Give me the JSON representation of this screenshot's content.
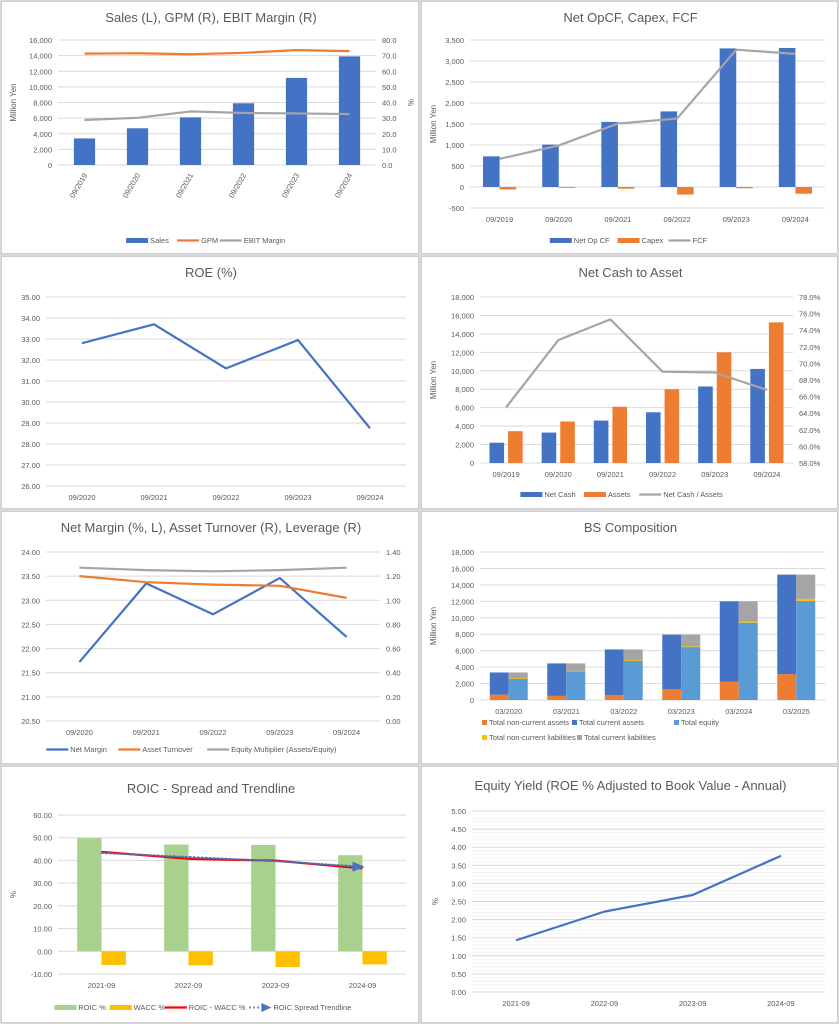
{
  "chart_data": [
    {
      "id": "sales",
      "type": "bar",
      "title": "Sales (L), GPM (R), EBIT Margin (R)",
      "categories": [
        "09/2019",
        "09/2020",
        "09/2021",
        "09/2022",
        "09/2023",
        "09/2024"
      ],
      "ylabel": "Million Yen",
      "y2label": "%",
      "ylim": [
        0,
        16000
      ],
      "yticks": [
        "0",
        "2,000",
        "4,000",
        "6,000",
        "8,000",
        "10,000",
        "12,000",
        "14,000",
        "16,000"
      ],
      "y2lim": [
        0,
        80
      ],
      "y2ticks": [
        "0.0",
        "10.0",
        "20.0",
        "30.0",
        "40.0",
        "50.0",
        "60.0",
        "70.0",
        "80.0"
      ],
      "series": [
        {
          "name": "Sales",
          "kind": "bar",
          "axis": "left",
          "color": "#4472c4",
          "values": [
            3400,
            4700,
            6100,
            7900,
            11150,
            13900
          ]
        },
        {
          "name": "GPM",
          "kind": "line",
          "axis": "right",
          "color": "#ed7d31",
          "values": [
            71.3,
            71.5,
            70.9,
            71.8,
            73.5,
            72.9
          ]
        },
        {
          "name": "EBIT Margin",
          "kind": "line",
          "axis": "right",
          "color": "#a5a5a5",
          "values": [
            28.8,
            30.2,
            34.3,
            33.3,
            33.0,
            32.6
          ]
        }
      ],
      "legend": "bottom",
      "xrotate": true
    },
    {
      "id": "cashflow",
      "type": "bar",
      "title": "Net OpCF, Capex, FCF",
      "categories": [
        "09/2019",
        "09/2020",
        "09/2021",
        "09/2022",
        "09/2023",
        "09/2024"
      ],
      "ylabel": "Million Yen",
      "ylim": [
        -500,
        3500
      ],
      "yticks": [
        "-500",
        "0",
        "500",
        "1,000",
        "1,500",
        "2,000",
        "2,500",
        "3,000",
        "3,500"
      ],
      "negative_tick_color": "#ff0000",
      "series": [
        {
          "name": "Net Op CF",
          "kind": "bar",
          "axis": "left",
          "color": "#4472c4",
          "values": [
            730,
            1010,
            1550,
            1800,
            3300,
            3310
          ]
        },
        {
          "name": "Capex",
          "kind": "bar",
          "axis": "left",
          "color": "#ed7d31",
          "values": [
            -60,
            -20,
            -40,
            -180,
            -30,
            -160
          ]
        },
        {
          "name": "FCF",
          "kind": "line",
          "axis": "left",
          "color": "#a5a5a5",
          "values": [
            670,
            990,
            1510,
            1630,
            3270,
            3170
          ]
        }
      ],
      "legend": "bottom"
    },
    {
      "id": "roe",
      "type": "line",
      "title": "ROE (%)",
      "categories": [
        "09/2020",
        "09/2021",
        "09/2022",
        "09/2023",
        "09/2024"
      ],
      "ylim": [
        26,
        35
      ],
      "yticks": [
        "26.00",
        "27.00",
        "28.00",
        "29.00",
        "30.00",
        "31.00",
        "32.00",
        "33.00",
        "34.00",
        "35.00"
      ],
      "series": [
        {
          "name": "ROE",
          "kind": "line",
          "axis": "left",
          "color": "#4472c4",
          "values": [
            32.8,
            33.7,
            31.6,
            32.95,
            28.75
          ]
        }
      ],
      "legend": "none"
    },
    {
      "id": "netcash",
      "type": "bar",
      "title": "Net Cash to Asset",
      "categories": [
        "09/2019",
        "09/2020",
        "09/2021",
        "09/2022",
        "09/2023",
        "09/2024"
      ],
      "ylabel": "Million Yen",
      "ylim": [
        0,
        18000
      ],
      "yticks": [
        "0",
        "2,000",
        "4,000",
        "6,000",
        "8,000",
        "10,000",
        "12,000",
        "14,000",
        "16,000",
        "18,000"
      ],
      "y2lim": [
        58,
        78
      ],
      "y2ticks": [
        "58.0%",
        "60.0%",
        "62.0%",
        "64.0%",
        "66.0%",
        "68.0%",
        "70.0%",
        "72.0%",
        "74.0%",
        "76.0%",
        "78.0%"
      ],
      "series": [
        {
          "name": "Net Cash",
          "kind": "bar",
          "axis": "left",
          "color": "#4472c4",
          "values": [
            2200,
            3300,
            4600,
            5500,
            8300,
            10200
          ]
        },
        {
          "name": "Assets",
          "kind": "bar",
          "axis": "left",
          "color": "#ed7d31",
          "values": [
            3450,
            4500,
            6100,
            8000,
            12000,
            15250
          ]
        },
        {
          "name": "Net Cash / Assets",
          "kind": "line",
          "axis": "right",
          "color": "#a5a5a5",
          "values": [
            64.7,
            72.8,
            75.3,
            69.0,
            68.9,
            66.8
          ]
        }
      ],
      "legend": "bottom"
    },
    {
      "id": "dupont",
      "type": "line",
      "title": "Net Margin (%, L), Asset Turnover (R), Leverage (R)",
      "categories": [
        "09/2020",
        "09/2021",
        "09/2022",
        "09/2023",
        "09/2024"
      ],
      "ylim": [
        20.5,
        24.0
      ],
      "yticks": [
        "20.50",
        "21.00",
        "21.50",
        "22.00",
        "22.50",
        "23.00",
        "23.50",
        "24.00"
      ],
      "y2lim": [
        0,
        1.4
      ],
      "y2ticks": [
        "0.00",
        "0.20",
        "0.40",
        "0.60",
        "0.80",
        "1.00",
        "1.20",
        "1.40"
      ],
      "series": [
        {
          "name": "Net Margin",
          "kind": "line",
          "axis": "left",
          "color": "#4472c4",
          "values": [
            21.72,
            23.35,
            22.71,
            23.46,
            22.24
          ]
        },
        {
          "name": "Asset Turnover",
          "kind": "line",
          "axis": "right",
          "color": "#ed7d31",
          "values": [
            1.2,
            1.15,
            1.13,
            1.12,
            1.02
          ]
        },
        {
          "name": "Equity Multiplier (Assets/Equity)",
          "kind": "line",
          "axis": "right",
          "color": "#a5a5a5",
          "values": [
            1.27,
            1.25,
            1.24,
            1.25,
            1.27
          ]
        }
      ],
      "legend": "bottom"
    },
    {
      "id": "bs",
      "type": "bar",
      "title": "BS Composition",
      "categories": [
        "03/2020",
        "03/2021",
        "03/2022",
        "03/2023",
        "03/2024",
        "03/2025"
      ],
      "ylabel": "Million Yen",
      "ylim": [
        0,
        18000
      ],
      "yticks": [
        "0",
        "2,000",
        "4,000",
        "6,000",
        "8,000",
        "10,000",
        "12,000",
        "14,000",
        "16,000",
        "18,000"
      ],
      "stacks": [
        {
          "stack": "assets",
          "series": [
            {
              "name": "Total non-current assets",
              "color": "#ed7d31",
              "values": [
                650,
                500,
                600,
                1300,
                2250,
                3150
              ]
            },
            {
              "name": "Total current assets",
              "color": "#4472c4",
              "values": [
                2700,
                3950,
                5550,
                6650,
                9750,
                12100
              ]
            }
          ]
        },
        {
          "stack": "liab_equity",
          "series": [
            {
              "name": "Total equity",
              "color": "#5b9bd5",
              "values": [
                2650,
                3550,
                4850,
                6500,
                9400,
                12050
              ]
            },
            {
              "name": "Total non-current liabilities",
              "color": "#ffc000",
              "values": [
                10,
                10,
                10,
                20,
                150,
                250
              ]
            },
            {
              "name": "Total current liabilities",
              "color": "#a5a5a5",
              "values": [
                690,
                890,
                1290,
                1430,
                2450,
                2950
              ]
            }
          ]
        }
      ],
      "legend_items": [
        {
          "name": "Total non-current assets",
          "color": "#ed7d31"
        },
        {
          "name": "Total current assets",
          "color": "#4472c4"
        },
        {
          "name": "Total equity",
          "color": "#5b9bd5"
        },
        {
          "name": "Total non-current liabilities",
          "color": "#ffc000"
        },
        {
          "name": "Total current liabilities",
          "color": "#a5a5a5"
        }
      ],
      "legend": "bottom"
    },
    {
      "id": "roic",
      "type": "bar",
      "title": "ROIC - Spread and Trendline",
      "categories": [
        "2021-09",
        "2022-09",
        "2023-09",
        "2024-09"
      ],
      "ylabel": "%",
      "ylim": [
        -10,
        60
      ],
      "yticks": [
        "-10.00",
        "0.00",
        "10.00",
        "20.00",
        "30.00",
        "40.00",
        "50.00",
        "60.00"
      ],
      "series": [
        {
          "name": "ROIC %",
          "kind": "bar",
          "color": "#a9d18e",
          "values": [
            49.8,
            47.0,
            46.8,
            42.3
          ]
        },
        {
          "name": "WACC %",
          "kind": "bar",
          "color": "#ffc000",
          "values": [
            -6.0,
            -6.2,
            -6.9,
            -5.8
          ]
        },
        {
          "name": "ROIC - WACC %",
          "kind": "line",
          "color": "#ff0000",
          "values": [
            43.8,
            40.7,
            39.9,
            36.5
          ]
        },
        {
          "name": "ROIC Spread Trendline",
          "kind": "trend",
          "color": "#4472c4",
          "values": [
            43.3,
            41.5,
            39.7,
            37.2
          ]
        }
      ],
      "legend": "bottom"
    },
    {
      "id": "equityyield",
      "type": "line",
      "title": "Equity Yield (ROE % Adjusted to Book Value - Annual)",
      "categories": [
        "2021-09",
        "2022-09",
        "2023-09",
        "2024-09"
      ],
      "ylabel": "%",
      "ylim": [
        0,
        5
      ],
      "yticks": [
        "0.00",
        "0.50",
        "1.00",
        "1.50",
        "2.00",
        "2.50",
        "3.00",
        "3.50",
        "4.00",
        "4.50",
        "5.00"
      ],
      "series": [
        {
          "name": "Equity Yield",
          "kind": "line",
          "color": "#4472c4",
          "values": [
            1.43,
            2.22,
            2.68,
            3.76
          ]
        }
      ],
      "legend": "none"
    }
  ]
}
